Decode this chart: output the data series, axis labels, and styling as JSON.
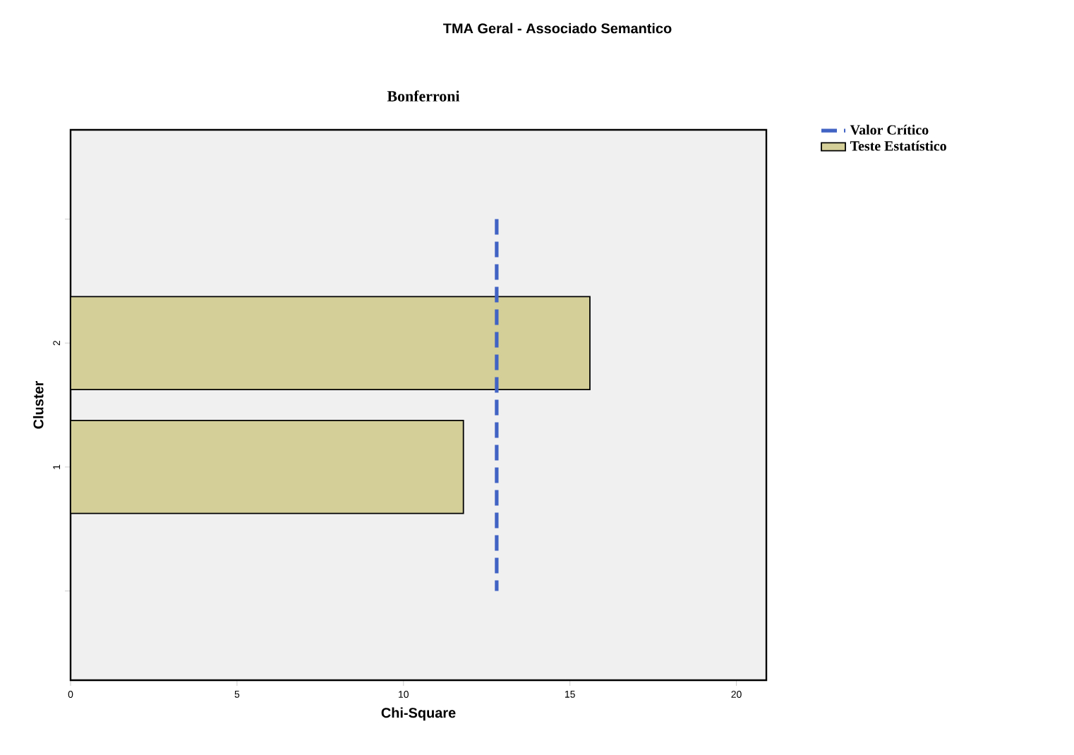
{
  "chart_data": {
    "type": "bar",
    "orientation": "horizontal",
    "title": "TMA Geral - Associado Semantico",
    "subtitle": "Bonferroni",
    "xlabel": "Chi-Square",
    "ylabel": "Cluster",
    "categories": [
      null,
      "2",
      "1",
      null
    ],
    "series": [
      {
        "name": "Teste Estatístico",
        "color": "#d4cf98",
        "values": [
          null,
          15.6,
          11.8,
          null
        ]
      }
    ],
    "xlim": [
      0,
      20.9
    ],
    "xticks": [
      0,
      5,
      10,
      15,
      20
    ],
    "ref_lines": [
      {
        "axis": "x",
        "value": 12.8,
        "label": "Valor Crítico",
        "color": "#4163c4",
        "line_style": "dashed"
      }
    ],
    "legend": "top right",
    "grid": false
  }
}
